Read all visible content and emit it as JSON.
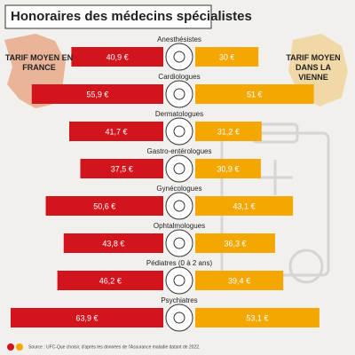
{
  "chart_data": {
    "type": "butterfly",
    "title": "Honoraires des médecins spécialistes",
    "categories": [
      "Anesthésistes",
      "Cardiologues",
      "Dermatologues",
      "Gastro-entérologues",
      "Gynécologues",
      "Ophtalmologues",
      "Pédiatres (0 à 2 ans)",
      "Psychiatres"
    ],
    "series": [
      {
        "name": "TARIF MOYEN EN FRANCE",
        "color": "#d2141c",
        "values": [
          40.9,
          55.9,
          41.7,
          37.5,
          50.6,
          43.8,
          46.2,
          63.9
        ],
        "value_labels": [
          "40,9 €",
          "55,9 €",
          "41,7 €",
          "37,5 €",
          "50,6 €",
          "43,8 €",
          "46,2 €",
          "63,9 €"
        ]
      },
      {
        "name": "TARIF MOYEN DANS LA VIENNE",
        "color": "#f4a700",
        "values": [
          30,
          51,
          31.2,
          30.9,
          43.1,
          36.3,
          39.4,
          53.1
        ],
        "value_labels": [
          "30 €",
          "51 €",
          "31,2 €",
          "30,9 €",
          "43,1 €",
          "36,3 €",
          "39,4 €",
          "53,1 €"
        ]
      }
    ],
    "source": "Source : UFC-Que choisir, d'après les données de l'Assurance maladie datant de 2022."
  }
}
